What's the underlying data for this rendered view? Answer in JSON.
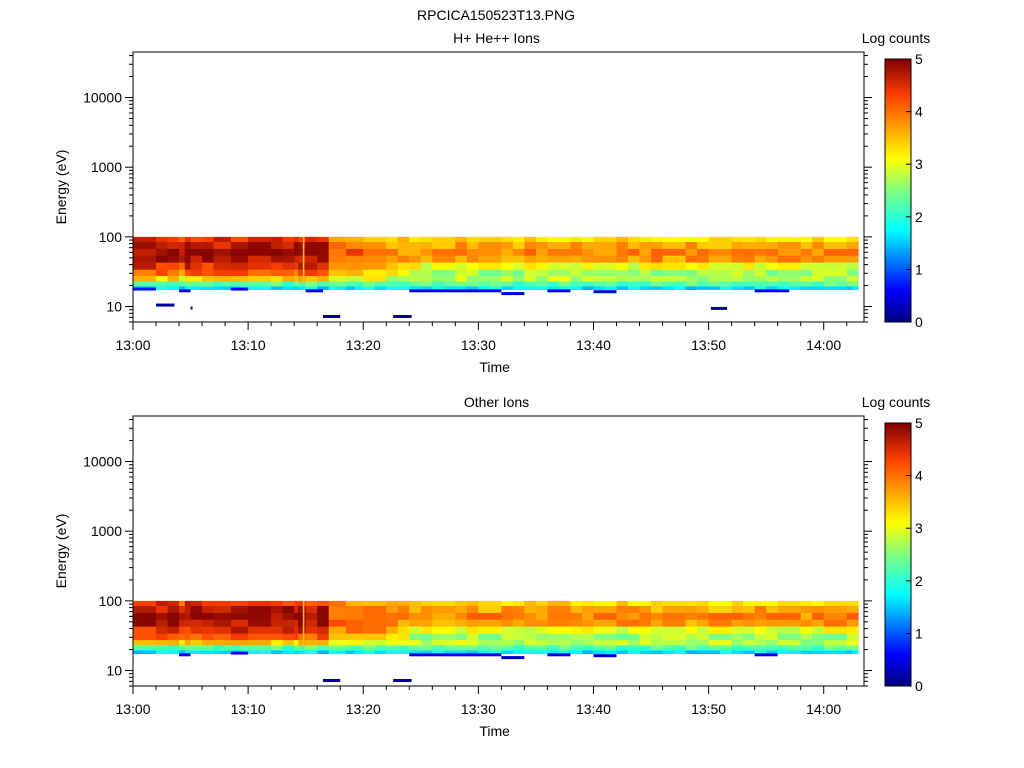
{
  "figure": {
    "title": "RPCICA150523T13.PNG"
  },
  "chart_data": [
    {
      "type": "heatmap",
      "title": "H+ He++ Ions",
      "xlabel": "Time",
      "ylabel": "Energy (eV)",
      "x_tick_labels": [
        "13:00",
        "13:10",
        "13:20",
        "13:30",
        "13:40",
        "13:50",
        "14:00"
      ],
      "x_range": [
        "13:00",
        "14:03"
      ],
      "y_scale": "log",
      "y_tick_labels": [
        "10",
        "100",
        "1000",
        "10000"
      ],
      "y_range": [
        6,
        45000
      ],
      "colorbar": {
        "label": "Log counts",
        "ticks": [
          "0",
          "1",
          "2",
          "3",
          "4",
          "5"
        ],
        "range": [
          0,
          5
        ]
      },
      "grid": false,
      "energy_bins_ev": [
        95,
        75,
        60,
        48,
        38,
        30,
        25,
        21,
        18
      ],
      "time_bins_min": [
        0,
        2,
        4,
        5,
        7,
        8.5,
        10,
        12,
        14,
        14.7,
        15,
        17,
        18.5,
        20,
        22,
        24,
        26,
        28,
        30,
        32,
        34,
        36,
        38,
        40,
        42,
        44,
        46,
        48,
        50,
        52,
        54,
        56,
        58,
        60,
        62,
        63
      ],
      "low_energy_band_log_counts": [
        {
          "t0": 0,
          "t1": 2,
          "e": 18,
          "v": 0.7
        },
        {
          "t0": 4,
          "t1": 5,
          "e": 17,
          "v": 0.6
        },
        {
          "t0": 8.5,
          "t1": 10,
          "e": 18,
          "v": 0.6
        },
        {
          "t0": 15,
          "t1": 16.5,
          "e": 17,
          "v": 0.5
        },
        {
          "t0": 24,
          "t1": 32,
          "e": 17,
          "v": 0.5
        },
        {
          "t0": 32,
          "t1": 34,
          "e": 15.5,
          "v": 0.4
        },
        {
          "t0": 36,
          "t1": 38,
          "e": 17,
          "v": 0.5
        },
        {
          "t0": 40,
          "t1": 42,
          "e": 16.5,
          "v": 0.4
        },
        {
          "t0": 54,
          "t1": 57,
          "e": 17,
          "v": 0.5
        }
      ],
      "sparse_points": [
        {
          "t0": 2,
          "t1": 3.6,
          "e": 10.5,
          "v": 0.15
        },
        {
          "t0": 5,
          "t1": 5.1,
          "e": 9.5,
          "v": 0.15
        },
        {
          "t0": 16.5,
          "t1": 18,
          "e": 7.2,
          "v": 0.1
        },
        {
          "t0": 22.6,
          "t1": 24.2,
          "e": 7.2,
          "v": 0.1
        },
        {
          "t0": 50.2,
          "t1": 51.6,
          "e": 9.4,
          "v": 0.15
        }
      ]
    },
    {
      "type": "heatmap",
      "title": "Other Ions",
      "xlabel": "Time",
      "ylabel": "Energy (eV)",
      "x_tick_labels": [
        "13:00",
        "13:10",
        "13:20",
        "13:30",
        "13:40",
        "13:50",
        "14:00"
      ],
      "x_range": [
        "13:00",
        "14:03"
      ],
      "y_scale": "log",
      "y_tick_labels": [
        "10",
        "100",
        "1000",
        "10000"
      ],
      "y_range": [
        6,
        45000
      ],
      "colorbar": {
        "label": "Log counts",
        "ticks": [
          "0",
          "1",
          "2",
          "3",
          "4",
          "5"
        ],
        "range": [
          0,
          5
        ]
      },
      "grid": false,
      "energy_bins_ev": [
        95,
        75,
        60,
        48,
        38,
        30,
        25,
        21,
        18
      ],
      "time_bins_min": [
        0,
        2,
        4,
        5,
        7,
        8.5,
        10,
        12,
        14,
        14.7,
        15,
        17,
        18.5,
        20,
        22,
        24,
        26,
        28,
        30,
        32,
        34,
        36,
        38,
        40,
        42,
        44,
        46,
        48,
        50,
        52,
        54,
        56,
        58,
        60,
        62,
        63
      ],
      "low_energy_band_log_counts": [
        {
          "t0": 4,
          "t1": 5,
          "e": 17,
          "v": 0.6
        },
        {
          "t0": 8.5,
          "t1": 10,
          "e": 18,
          "v": 0.6
        },
        {
          "t0": 24,
          "t1": 32,
          "e": 17,
          "v": 0.5
        },
        {
          "t0": 32,
          "t1": 34,
          "e": 15.5,
          "v": 0.4
        },
        {
          "t0": 36,
          "t1": 38,
          "e": 17,
          "v": 0.5
        },
        {
          "t0": 40,
          "t1": 42,
          "e": 16.5,
          "v": 0.4
        },
        {
          "t0": 54,
          "t1": 56,
          "e": 17,
          "v": 0.5
        }
      ],
      "sparse_points": [
        {
          "t0": 16.5,
          "t1": 18,
          "e": 7.2,
          "v": 0.1
        },
        {
          "t0": 22.6,
          "t1": 24.2,
          "e": 7.2,
          "v": 0.1
        }
      ]
    }
  ]
}
